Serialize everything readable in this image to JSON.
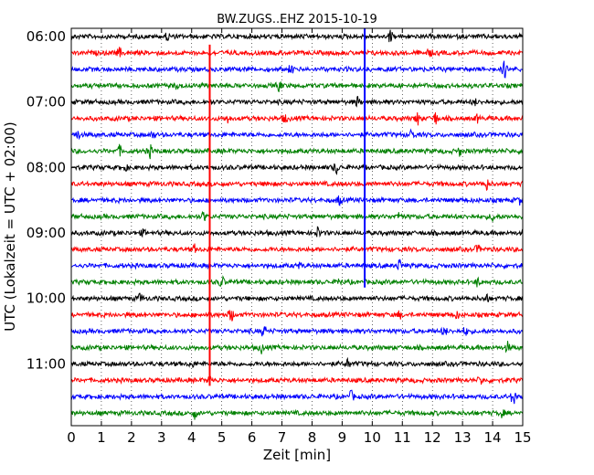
{
  "chart_data": {
    "type": "line",
    "title": "BW.ZUGS..EHZ 2015-10-19",
    "xlabel": "Zeit  [min]",
    "ylabel": "UTC (Lokalzeit = UTC + 02:00)",
    "xlim": [
      0,
      15
    ],
    "x_ticks": [
      "0",
      "1",
      "2",
      "3",
      "4",
      "5",
      "6",
      "7",
      "8",
      "9",
      "10",
      "11",
      "12",
      "13",
      "14",
      "15"
    ],
    "y_ticks": [
      "06:00",
      "07:00",
      "08:00",
      "09:00",
      "10:00",
      "11:00"
    ],
    "trace_interval_min": 15,
    "grid": true,
    "trace_colors": [
      "#000000",
      "#ff0000",
      "#0000ff",
      "#008000"
    ],
    "traces": [
      {
        "start": "06:00",
        "color": "#000000",
        "spikes": [
          [
            3.2,
            0.6
          ],
          [
            10.6,
            0.9
          ]
        ]
      },
      {
        "start": "06:15",
        "color": "#ff0000",
        "spikes": [
          [
            1.6,
            0.7
          ],
          [
            11.9,
            0.6
          ]
        ]
      },
      {
        "start": "06:30",
        "color": "#0000ff",
        "spikes": [
          [
            7.3,
            0.6
          ],
          [
            14.4,
            1.3
          ]
        ]
      },
      {
        "start": "06:45",
        "color": "#008000",
        "spikes": [
          [
            6.9,
            0.8
          ],
          [
            3.5,
            0.4
          ]
        ]
      },
      {
        "start": "07:00",
        "color": "#000000",
        "spikes": [
          [
            9.5,
            0.7
          ],
          [
            13.4,
            0.5
          ]
        ]
      },
      {
        "start": "07:15",
        "color": "#ff0000",
        "spikes": [
          [
            5.2,
            0.5
          ],
          [
            7.1,
            0.6
          ],
          [
            11.5,
            1.0
          ],
          [
            12.1,
            0.9
          ],
          [
            13.5,
            0.5
          ]
        ]
      },
      {
        "start": "07:30",
        "color": "#0000ff",
        "spikes": [
          [
            0.2,
            0.7
          ],
          [
            2.7,
            0.5
          ],
          [
            11.3,
            0.8
          ]
        ]
      },
      {
        "start": "07:45",
        "color": "#008000",
        "spikes": [
          [
            1.6,
            0.7
          ],
          [
            2.6,
            1.0
          ],
          [
            12.9,
            0.6
          ]
        ]
      },
      {
        "start": "08:00",
        "color": "#000000",
        "spikes": [
          [
            8.8,
            1.0
          ],
          [
            1.8,
            0.4
          ]
        ]
      },
      {
        "start": "08:15",
        "color": "#ff0000",
        "spikes": [
          [
            13.8,
            0.8
          ],
          [
            6.5,
            0.4
          ]
        ]
      },
      {
        "start": "08:30",
        "color": "#0000ff",
        "spikes": [
          [
            8.9,
            0.7
          ],
          [
            14.9,
            0.5
          ]
        ]
      },
      {
        "start": "08:45",
        "color": "#008000",
        "spikes": [
          [
            4.4,
            0.7
          ],
          [
            10.9,
            0.6
          ],
          [
            14.0,
            0.6
          ]
        ]
      },
      {
        "start": "09:00",
        "color": "#000000",
        "spikes": [
          [
            8.2,
            0.8
          ],
          [
            2.4,
            0.4
          ]
        ]
      },
      {
        "start": "09:15",
        "color": "#ff0000",
        "spikes": [
          [
            4.1,
            0.5
          ],
          [
            13.5,
            0.6
          ]
        ]
      },
      {
        "start": "09:30",
        "color": "#0000ff",
        "spikes": [
          [
            10.9,
            0.9
          ],
          [
            7.6,
            0.4
          ]
        ]
      },
      {
        "start": "09:45",
        "color": "#008000",
        "spikes": [
          [
            5.0,
            0.9
          ],
          [
            8.9,
            0.6
          ],
          [
            13.5,
            0.6
          ]
        ]
      },
      {
        "start": "10:00",
        "color": "#000000",
        "spikes": [
          [
            2.3,
            0.7
          ],
          [
            13.8,
            0.6
          ]
        ]
      },
      {
        "start": "10:15",
        "color": "#ff0000",
        "spikes": [
          [
            5.3,
            1.2
          ],
          [
            10.9,
            0.5
          ],
          [
            12.8,
            0.5
          ]
        ]
      },
      {
        "start": "10:30",
        "color": "#0000ff",
        "spikes": [
          [
            6.4,
            0.9
          ],
          [
            12.4,
            0.7
          ],
          [
            13.1,
            0.6
          ]
        ]
      },
      {
        "start": "10:45",
        "color": "#008000",
        "spikes": [
          [
            6.3,
            0.8
          ],
          [
            14.5,
            0.7
          ]
        ]
      },
      {
        "start": "11:00",
        "color": "#000000",
        "spikes": [
          [
            9.2,
            0.7
          ],
          [
            4.0,
            0.4
          ]
        ]
      },
      {
        "start": "11:15",
        "color": "#ff0000",
        "spikes": [
          [
            4.6,
            0.6
          ],
          [
            13.6,
            0.6
          ]
        ]
      },
      {
        "start": "11:30",
        "color": "#0000ff",
        "spikes": [
          [
            9.3,
            0.8
          ],
          [
            14.7,
            1.4
          ]
        ]
      },
      {
        "start": "11:45",
        "color": "#008000",
        "spikes": [
          [
            4.1,
            0.8
          ],
          [
            14.3,
            0.6
          ]
        ]
      }
    ],
    "vertical_lines": [
      {
        "x": 4.6,
        "from": "06:15",
        "to": "11:15",
        "color": "#ff0000"
      },
      {
        "x": 9.75,
        "from": "06:00",
        "to": "09:45",
        "color": "#0000ff"
      }
    ]
  }
}
